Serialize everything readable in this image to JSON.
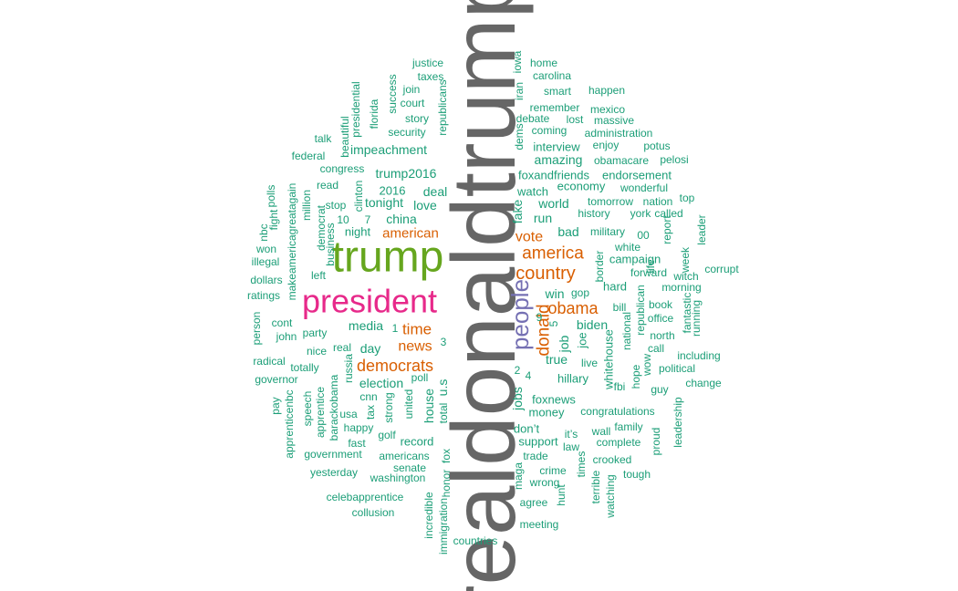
{
  "palette": {
    "teal": "#1b9e77",
    "orange": "#d95f02",
    "purple": "#7570b3",
    "pink": "#e7298a",
    "green": "#66a61e",
    "gray": "#666666"
  },
  "words": [
    {
      "text": "realdonaldtrump",
      "color": "gray"
    },
    {
      "text": "trump",
      "color": "green"
    },
    {
      "text": "president",
      "color": "pink"
    },
    {
      "text": "people",
      "color": "purple"
    },
    {
      "text": "country",
      "color": "orange"
    },
    {
      "text": "america",
      "color": "orange"
    },
    {
      "text": "donald",
      "color": "orange"
    },
    {
      "text": "obama",
      "color": "orange"
    },
    {
      "text": "democrats",
      "color": "orange"
    },
    {
      "text": "news",
      "color": "orange"
    },
    {
      "text": "vote",
      "color": "orange"
    },
    {
      "text": "american",
      "color": "orange"
    },
    {
      "text": "time",
      "color": "orange"
    },
    {
      "text": "justice",
      "color": "teal"
    },
    {
      "text": "taxes",
      "color": "teal"
    },
    {
      "text": "join",
      "color": "teal"
    },
    {
      "text": "court",
      "color": "teal"
    },
    {
      "text": "story",
      "color": "teal"
    },
    {
      "text": "security",
      "color": "teal"
    },
    {
      "text": "success",
      "color": "teal"
    },
    {
      "text": "republicans",
      "color": "teal"
    },
    {
      "text": "presidential",
      "color": "teal"
    },
    {
      "text": "florida",
      "color": "teal"
    },
    {
      "text": "talk",
      "color": "teal"
    },
    {
      "text": "beautiful",
      "color": "teal"
    },
    {
      "text": "impeachment",
      "color": "teal"
    },
    {
      "text": "federal",
      "color": "teal"
    },
    {
      "text": "congress",
      "color": "teal"
    },
    {
      "text": "trump2016",
      "color": "teal"
    },
    {
      "text": "read",
      "color": "teal"
    },
    {
      "text": "2016",
      "color": "teal"
    },
    {
      "text": "deal",
      "color": "teal"
    },
    {
      "text": "stop",
      "color": "teal"
    },
    {
      "text": "clinton",
      "color": "teal"
    },
    {
      "text": "tonight",
      "color": "teal"
    },
    {
      "text": "love",
      "color": "teal"
    },
    {
      "text": "10",
      "color": "teal"
    },
    {
      "text": "7",
      "color": "teal"
    },
    {
      "text": "china",
      "color": "teal"
    },
    {
      "text": "night",
      "color": "teal"
    },
    {
      "text": "polls",
      "color": "teal"
    },
    {
      "text": "fight",
      "color": "teal"
    },
    {
      "text": "makeamericagreatagain",
      "color": "teal"
    },
    {
      "text": "million",
      "color": "teal"
    },
    {
      "text": "democrat",
      "color": "teal"
    },
    {
      "text": "business",
      "color": "teal"
    },
    {
      "text": "nbc",
      "color": "teal"
    },
    {
      "text": "won",
      "color": "teal"
    },
    {
      "text": "illegal",
      "color": "teal"
    },
    {
      "text": "dollars",
      "color": "teal"
    },
    {
      "text": "left",
      "color": "teal"
    },
    {
      "text": "ratings",
      "color": "teal"
    },
    {
      "text": "person",
      "color": "teal"
    },
    {
      "text": "cont",
      "color": "teal"
    },
    {
      "text": "john",
      "color": "teal"
    },
    {
      "text": "party",
      "color": "teal"
    },
    {
      "text": "media",
      "color": "teal"
    },
    {
      "text": "1",
      "color": "teal"
    },
    {
      "text": "day",
      "color": "teal"
    },
    {
      "text": "real",
      "color": "teal"
    },
    {
      "text": "nice",
      "color": "teal"
    },
    {
      "text": "totally",
      "color": "teal"
    },
    {
      "text": "radical",
      "color": "teal"
    },
    {
      "text": "russia",
      "color": "teal"
    },
    {
      "text": "3",
      "color": "teal"
    },
    {
      "text": "governor",
      "color": "teal"
    },
    {
      "text": "election",
      "color": "teal"
    },
    {
      "text": "poll",
      "color": "teal"
    },
    {
      "text": "u.s",
      "color": "teal"
    },
    {
      "text": "house",
      "color": "teal"
    },
    {
      "text": "cnn",
      "color": "teal"
    },
    {
      "text": "united",
      "color": "teal"
    },
    {
      "text": "strong",
      "color": "teal"
    },
    {
      "text": "pay",
      "color": "teal"
    },
    {
      "text": "apprenticenbc",
      "color": "teal"
    },
    {
      "text": "speech",
      "color": "teal"
    },
    {
      "text": "apprentice",
      "color": "teal"
    },
    {
      "text": "barackobama",
      "color": "teal"
    },
    {
      "text": "usa",
      "color": "teal"
    },
    {
      "text": "tax",
      "color": "teal"
    },
    {
      "text": "happy",
      "color": "teal"
    },
    {
      "text": "golf",
      "color": "teal"
    },
    {
      "text": "total",
      "color": "teal"
    },
    {
      "text": "fast",
      "color": "teal"
    },
    {
      "text": "record",
      "color": "teal"
    },
    {
      "text": "government",
      "color": "teal"
    },
    {
      "text": "americans",
      "color": "teal"
    },
    {
      "text": "senate",
      "color": "teal"
    },
    {
      "text": "yesterday",
      "color": "teal"
    },
    {
      "text": "washington",
      "color": "teal"
    },
    {
      "text": "fox",
      "color": "teal"
    },
    {
      "text": "honor",
      "color": "teal"
    },
    {
      "text": "celebapprentice",
      "color": "teal"
    },
    {
      "text": "incredible",
      "color": "teal"
    },
    {
      "text": "immigration",
      "color": "teal"
    },
    {
      "text": "collusion",
      "color": "teal"
    },
    {
      "text": "countries",
      "color": "teal"
    },
    {
      "text": "iowa",
      "color": "teal"
    },
    {
      "text": "iran",
      "color": "teal"
    },
    {
      "text": "home",
      "color": "teal"
    },
    {
      "text": "carolina",
      "color": "teal"
    },
    {
      "text": "smart",
      "color": "teal"
    },
    {
      "text": "happen",
      "color": "teal"
    },
    {
      "text": "remember",
      "color": "teal"
    },
    {
      "text": "mexico",
      "color": "teal"
    },
    {
      "text": "debate",
      "color": "teal"
    },
    {
      "text": "lost",
      "color": "teal"
    },
    {
      "text": "massive",
      "color": "teal"
    },
    {
      "text": "dems",
      "color": "teal"
    },
    {
      "text": "coming",
      "color": "teal"
    },
    {
      "text": "administration",
      "color": "teal"
    },
    {
      "text": "interview",
      "color": "teal"
    },
    {
      "text": "enjoy",
      "color": "teal"
    },
    {
      "text": "potus",
      "color": "teal"
    },
    {
      "text": "amazing",
      "color": "teal"
    },
    {
      "text": "obamacare",
      "color": "teal"
    },
    {
      "text": "pelosi",
      "color": "teal"
    },
    {
      "text": "foxandfriends",
      "color": "teal"
    },
    {
      "text": "endorsement",
      "color": "teal"
    },
    {
      "text": "economy",
      "color": "teal"
    },
    {
      "text": "wonderful",
      "color": "teal"
    },
    {
      "text": "watch",
      "color": "teal"
    },
    {
      "text": "top",
      "color": "teal"
    },
    {
      "text": "world",
      "color": "teal"
    },
    {
      "text": "tomorrow",
      "color": "teal"
    },
    {
      "text": "nation",
      "color": "teal"
    },
    {
      "text": "fake",
      "color": "teal"
    },
    {
      "text": "history",
      "color": "teal"
    },
    {
      "text": "york",
      "color": "teal"
    },
    {
      "text": "called",
      "color": "teal"
    },
    {
      "text": "run",
      "color": "teal"
    },
    {
      "text": "leader",
      "color": "teal"
    },
    {
      "text": "report",
      "color": "teal"
    },
    {
      "text": "bad",
      "color": "teal"
    },
    {
      "text": "military",
      "color": "teal"
    },
    {
      "text": "00",
      "color": "teal"
    },
    {
      "text": "white",
      "color": "teal"
    },
    {
      "text": "campaign",
      "color": "teal"
    },
    {
      "text": "week",
      "color": "teal"
    },
    {
      "text": "border",
      "color": "teal"
    },
    {
      "text": "life",
      "color": "teal"
    },
    {
      "text": "corrupt",
      "color": "teal"
    },
    {
      "text": "forward",
      "color": "teal"
    },
    {
      "text": "witch",
      "color": "teal"
    },
    {
      "text": "hard",
      "color": "teal"
    },
    {
      "text": "morning",
      "color": "teal"
    },
    {
      "text": "win",
      "color": "teal"
    },
    {
      "text": "gop",
      "color": "teal"
    },
    {
      "text": "bill",
      "color": "teal"
    },
    {
      "text": "book",
      "color": "teal"
    },
    {
      "text": "9",
      "color": "teal"
    },
    {
      "text": "5",
      "color": "teal"
    },
    {
      "text": "republican",
      "color": "teal"
    },
    {
      "text": "office",
      "color": "teal"
    },
    {
      "text": "fantastic",
      "color": "teal"
    },
    {
      "text": "running",
      "color": "teal"
    },
    {
      "text": "biden",
      "color": "teal"
    },
    {
      "text": "joe",
      "color": "teal"
    },
    {
      "text": "job",
      "color": "teal"
    },
    {
      "text": "national",
      "color": "teal"
    },
    {
      "text": "north",
      "color": "teal"
    },
    {
      "text": "call",
      "color": "teal"
    },
    {
      "text": "including",
      "color": "teal"
    },
    {
      "text": "true",
      "color": "teal"
    },
    {
      "text": "live",
      "color": "teal"
    },
    {
      "text": "wow",
      "color": "teal"
    },
    {
      "text": "political",
      "color": "teal"
    },
    {
      "text": "hillary",
      "color": "teal"
    },
    {
      "text": "whitehouse",
      "color": "teal"
    },
    {
      "text": "hope",
      "color": "teal"
    },
    {
      "text": "fbi",
      "color": "teal"
    },
    {
      "text": "change",
      "color": "teal"
    },
    {
      "text": "2",
      "color": "teal"
    },
    {
      "text": "4",
      "color": "teal"
    },
    {
      "text": "jobs",
      "color": "teal"
    },
    {
      "text": "foxnews",
      "color": "teal"
    },
    {
      "text": "guy",
      "color": "teal"
    },
    {
      "text": "leadership",
      "color": "teal"
    },
    {
      "text": "money",
      "color": "teal"
    },
    {
      "text": "congratulations",
      "color": "teal"
    },
    {
      "text": "don’t",
      "color": "teal"
    },
    {
      "text": "it’s",
      "color": "teal"
    },
    {
      "text": "wall",
      "color": "teal"
    },
    {
      "text": "family",
      "color": "teal"
    },
    {
      "text": "support",
      "color": "teal"
    },
    {
      "text": "law",
      "color": "teal"
    },
    {
      "text": "complete",
      "color": "teal"
    },
    {
      "text": "proud",
      "color": "teal"
    },
    {
      "text": "trade",
      "color": "teal"
    },
    {
      "text": "times",
      "color": "teal"
    },
    {
      "text": "crooked",
      "color": "teal"
    },
    {
      "text": "maga",
      "color": "teal"
    },
    {
      "text": "crime",
      "color": "teal"
    },
    {
      "text": "tough",
      "color": "teal"
    },
    {
      "text": "wrong",
      "color": "teal"
    },
    {
      "text": "terrible",
      "color": "teal"
    },
    {
      "text": "agree",
      "color": "teal"
    },
    {
      "text": "hunt",
      "color": "teal"
    },
    {
      "text": "watching",
      "color": "teal"
    },
    {
      "text": "meeting",
      "color": "teal"
    }
  ]
}
